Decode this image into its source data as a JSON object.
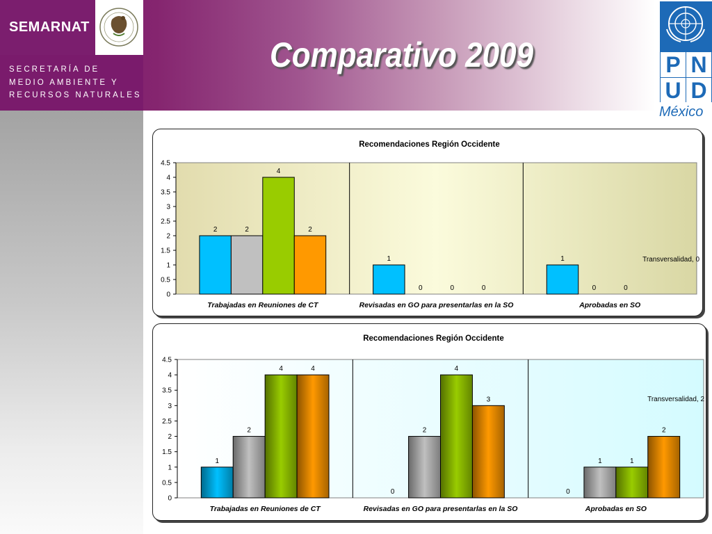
{
  "header": {
    "brand": "SEMARNAT",
    "agency_lines": [
      "SECRETARÍA DE",
      "MEDIO AMBIENTE Y",
      "RECURSOS NATURALES"
    ],
    "title": "Comparativo  2009",
    "partner_letters": [
      "P",
      "N",
      "U",
      "D"
    ],
    "partner_country": "México"
  },
  "colors": {
    "purple": "#7a1b6c",
    "series": [
      "#00c0ff",
      "#c0c0c0",
      "#99cc00",
      "#ff9900"
    ],
    "chart1_bg": "#fbfbdc",
    "chart2_bg": "#d4fbff"
  },
  "chart_data": [
    {
      "type": "bar",
      "title": "Recomendaciones Región Occidente",
      "categories": [
        "Trabajadas en Reuniones de CT",
        "Revisadas en GO para presentarlas en la SO",
        "Aprobadas en SO"
      ],
      "series": [
        {
          "values": [
            2,
            1,
            1
          ]
        },
        {
          "values": [
            2,
            0,
            0
          ]
        },
        {
          "values": [
            4,
            0,
            0
          ]
        },
        {
          "values": [
            2,
            0,
            null
          ]
        }
      ],
      "yticks": [
        "0",
        "0.5",
        "1",
        "1.5",
        "2",
        "2.5",
        "3",
        "3.5",
        "4",
        "4.5"
      ],
      "ylim": [
        0,
        4.5
      ],
      "annotation": "Transversalidad, 0",
      "gradient_fill": false
    },
    {
      "type": "bar",
      "title": "Recomendaciones Región Occidente",
      "categories": [
        "Trabajadas en Reuniones de CT",
        "Revisadas en GO para presentarlas en la SO",
        "Aprobadas en SO"
      ],
      "series": [
        {
          "values": [
            1,
            0,
            0
          ]
        },
        {
          "values": [
            2,
            2,
            1
          ]
        },
        {
          "values": [
            4,
            4,
            1
          ]
        },
        {
          "values": [
            4,
            3,
            2
          ]
        }
      ],
      "yticks": [
        "0",
        "0.5",
        "1",
        "1.5",
        "2",
        "2.5",
        "3",
        "3.5",
        "4",
        "4.5"
      ],
      "ylim": [
        0,
        4.5
      ],
      "annotation": "Transversalidad, 2",
      "gradient_fill": true
    }
  ]
}
